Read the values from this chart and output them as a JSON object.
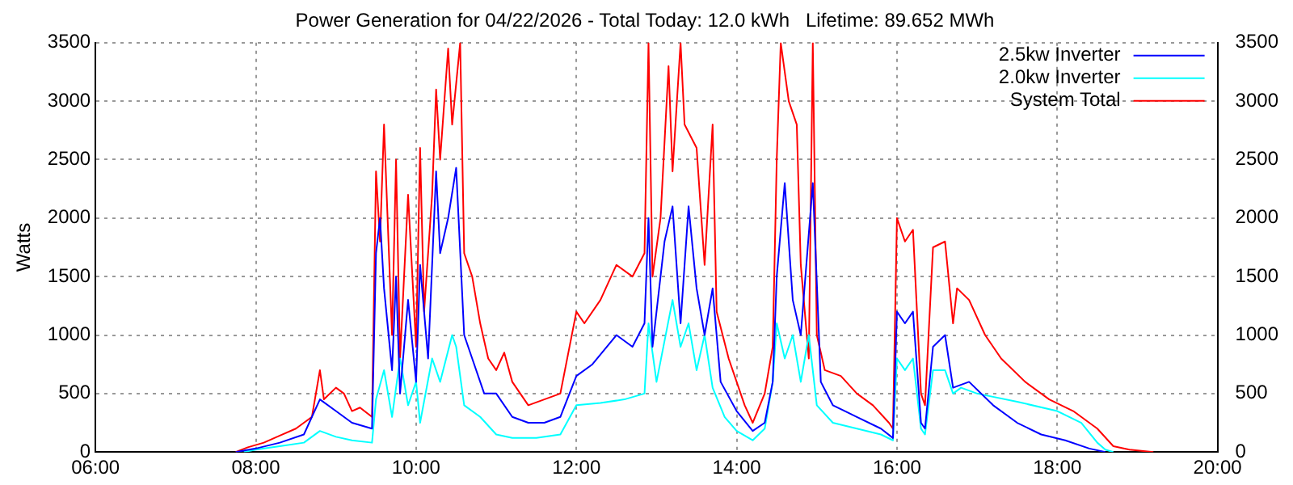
{
  "chart_data": {
    "type": "line",
    "title": "Power Generation for 04/22/2026 - Total Today: 12.0 kWh   Lifetime: 89.652 MWh",
    "ylabel": "Watts",
    "xlim": [
      6,
      20
    ],
    "xticks": [
      {
        "value": 6,
        "label": "06:00"
      },
      {
        "value": 8,
        "label": "08:00"
      },
      {
        "value": 10,
        "label": "10:00"
      },
      {
        "value": 12,
        "label": "12:00"
      },
      {
        "value": 14,
        "label": "14:00"
      },
      {
        "value": 16,
        "label": "16:00"
      },
      {
        "value": 18,
        "label": "18:00"
      },
      {
        "value": 20,
        "label": "20:00"
      }
    ],
    "ylim": [
      0,
      3500
    ],
    "yticks": [
      0,
      500,
      1000,
      1500,
      2000,
      2500,
      3000,
      3500
    ],
    "y2lim": [
      0,
      3500
    ],
    "y2ticks": [
      0,
      500,
      1000,
      1500,
      2000,
      2500,
      3000,
      3500
    ],
    "grid": true,
    "legend": "top right",
    "marker": "none",
    "series": [
      {
        "name": "2.5kw Inverter",
        "color": "#0000ff",
        "x": [
          7.75,
          8.0,
          8.3,
          8.6,
          8.8,
          9.0,
          9.2,
          9.45,
          9.5,
          9.55,
          9.6,
          9.7,
          9.75,
          9.8,
          9.9,
          10.0,
          10.05,
          10.15,
          10.25,
          10.3,
          10.4,
          10.5,
          10.6,
          10.7,
          10.85,
          11.0,
          11.2,
          11.4,
          11.6,
          11.8,
          12.0,
          12.2,
          12.5,
          12.7,
          12.85,
          12.9,
          12.95,
          13.1,
          13.2,
          13.3,
          13.4,
          13.5,
          13.6,
          13.7,
          13.8,
          14.0,
          14.2,
          14.35,
          14.45,
          14.5,
          14.6,
          14.7,
          14.8,
          14.95,
          15.05,
          15.2,
          15.5,
          15.8,
          15.95,
          16.0,
          16.1,
          16.2,
          16.3,
          16.35,
          16.45,
          16.6,
          16.7,
          16.9,
          17.2,
          17.5,
          17.8,
          18.1,
          18.4,
          18.6
        ],
        "values": [
          0,
          30,
          80,
          150,
          450,
          350,
          250,
          200,
          1700,
          2000,
          1400,
          700,
          1500,
          500,
          1300,
          600,
          1600,
          800,
          2400,
          1700,
          2000,
          2430,
          1000,
          800,
          500,
          500,
          300,
          250,
          250,
          300,
          650,
          750,
          1000,
          900,
          1100,
          2000,
          900,
          1800,
          2100,
          1100,
          2100,
          1400,
          1000,
          1400,
          600,
          350,
          180,
          250,
          600,
          1500,
          2300,
          1300,
          1000,
          2300,
          600,
          400,
          300,
          200,
          120,
          1200,
          1100,
          1200,
          250,
          200,
          900,
          1000,
          550,
          600,
          400,
          250,
          150,
          100,
          30,
          0
        ]
      },
      {
        "name": "2.0kw Inverter",
        "color": "#00ffff",
        "x": [
          7.85,
          8.0,
          8.3,
          8.6,
          8.8,
          9.0,
          9.2,
          9.45,
          9.5,
          9.6,
          9.7,
          9.8,
          9.9,
          10.0,
          10.05,
          10.2,
          10.3,
          10.45,
          10.5,
          10.6,
          10.8,
          11.0,
          11.2,
          11.5,
          11.8,
          12.0,
          12.3,
          12.6,
          12.85,
          12.9,
          13.0,
          13.2,
          13.3,
          13.4,
          13.5,
          13.6,
          13.7,
          13.85,
          14.0,
          14.2,
          14.35,
          14.45,
          14.5,
          14.6,
          14.7,
          14.8,
          14.9,
          15.0,
          15.2,
          15.5,
          15.8,
          15.95,
          16.0,
          16.1,
          16.2,
          16.3,
          16.35,
          16.45,
          16.6,
          16.7,
          16.8,
          17.0,
          17.5,
          18.0,
          18.3,
          18.5,
          18.6,
          18.7
        ],
        "values": [
          0,
          20,
          50,
          80,
          180,
          130,
          100,
          80,
          450,
          700,
          300,
          800,
          400,
          600,
          250,
          800,
          600,
          1000,
          900,
          400,
          300,
          150,
          120,
          120,
          150,
          400,
          420,
          450,
          500,
          1100,
          600,
          1300,
          900,
          1100,
          700,
          1000,
          550,
          300,
          180,
          100,
          200,
          600,
          1100,
          800,
          1000,
          600,
          1000,
          400,
          250,
          200,
          150,
          100,
          800,
          700,
          800,
          200,
          150,
          700,
          700,
          500,
          550,
          500,
          430,
          350,
          250,
          80,
          20,
          0
        ]
      },
      {
        "name": "System Total",
        "color": "#ff0000",
        "x": [
          7.75,
          7.9,
          8.1,
          8.3,
          8.5,
          8.7,
          8.8,
          8.85,
          9.0,
          9.1,
          9.2,
          9.3,
          9.45,
          9.5,
          9.55,
          9.6,
          9.7,
          9.75,
          9.8,
          9.9,
          10.0,
          10.05,
          10.1,
          10.2,
          10.25,
          10.3,
          10.4,
          10.45,
          10.55,
          10.6,
          10.7,
          10.8,
          10.9,
          11.0,
          11.1,
          11.2,
          11.4,
          11.6,
          11.8,
          12.0,
          12.1,
          12.3,
          12.5,
          12.7,
          12.85,
          12.9,
          12.95,
          13.05,
          13.15,
          13.2,
          13.3,
          13.35,
          13.5,
          13.6,
          13.7,
          13.75,
          13.9,
          14.1,
          14.2,
          14.35,
          14.45,
          14.5,
          14.55,
          14.65,
          14.75,
          14.8,
          14.9,
          14.95,
          15.0,
          15.1,
          15.3,
          15.5,
          15.7,
          15.9,
          15.95,
          16.0,
          16.1,
          16.2,
          16.3,
          16.35,
          16.45,
          16.6,
          16.7,
          16.75,
          16.9,
          17.1,
          17.3,
          17.6,
          17.9,
          18.2,
          18.5,
          18.7,
          18.9,
          19.2
        ],
        "values": [
          0,
          40,
          80,
          140,
          200,
          300,
          700,
          450,
          550,
          500,
          350,
          380,
          300,
          2400,
          1800,
          2800,
          1000,
          2500,
          800,
          2200,
          900,
          2600,
          1200,
          2200,
          3100,
          2500,
          3450,
          2800,
          3500,
          1700,
          1500,
          1100,
          800,
          700,
          850,
          600,
          400,
          450,
          500,
          1200,
          1100,
          1300,
          1600,
          1500,
          1700,
          3500,
          1500,
          2000,
          3300,
          2400,
          3500,
          2800,
          2600,
          1600,
          2800,
          1200,
          800,
          400,
          250,
          500,
          900,
          2500,
          3500,
          3000,
          2800,
          1600,
          800,
          3500,
          1000,
          700,
          650,
          500,
          400,
          250,
          200,
          2000,
          1800,
          1900,
          500,
          400,
          1750,
          1800,
          1100,
          1400,
          1300,
          1000,
          800,
          600,
          450,
          350,
          200,
          50,
          20,
          0
        ]
      }
    ]
  }
}
